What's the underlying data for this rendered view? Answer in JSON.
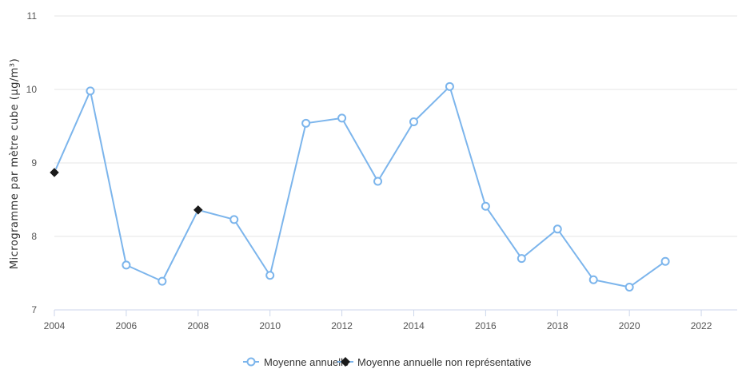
{
  "chart_data": {
    "type": "line",
    "title": "",
    "xlabel": "",
    "ylabel": "Microgramme par mètre cube (µg/m³)",
    "xlim": [
      2004,
      2023
    ],
    "ylim": [
      7,
      11
    ],
    "x_ticks": [
      2004,
      2006,
      2008,
      2010,
      2012,
      2014,
      2016,
      2018,
      2020,
      2022
    ],
    "y_ticks": [
      7,
      8,
      9,
      10,
      11
    ],
    "grid": "horizontal",
    "legend_position": "bottom-center",
    "line_color": "#7cb5ec",
    "marker_color": "#1a1a1a",
    "series": [
      {
        "name": "Moyenne annuelle",
        "marker": "circle",
        "points": [
          {
            "x": 2005,
            "y": 9.98
          },
          {
            "x": 2006,
            "y": 7.61
          },
          {
            "x": 2007,
            "y": 7.39
          },
          {
            "x": 2009,
            "y": 8.23
          },
          {
            "x": 2010,
            "y": 7.47
          },
          {
            "x": 2011,
            "y": 9.54
          },
          {
            "x": 2012,
            "y": 9.61
          },
          {
            "x": 2013,
            "y": 8.75
          },
          {
            "x": 2014,
            "y": 9.56
          },
          {
            "x": 2015,
            "y": 10.04
          },
          {
            "x": 2016,
            "y": 8.41
          },
          {
            "x": 2017,
            "y": 7.7
          },
          {
            "x": 2018,
            "y": 8.1
          },
          {
            "x": 2019,
            "y": 7.41
          },
          {
            "x": 2020,
            "y": 7.31
          },
          {
            "x": 2021,
            "y": 7.66
          }
        ]
      },
      {
        "name": "Moyenne annuelle non représentative",
        "marker": "diamond",
        "points": [
          {
            "x": 2004,
            "y": 8.87
          },
          {
            "x": 2008,
            "y": 8.36
          }
        ]
      }
    ],
    "line_order": [
      2004,
      2005,
      2006,
      2007,
      2008,
      2009,
      2010,
      2011,
      2012,
      2013,
      2014,
      2015,
      2016,
      2017,
      2018,
      2019,
      2020,
      2021
    ]
  }
}
